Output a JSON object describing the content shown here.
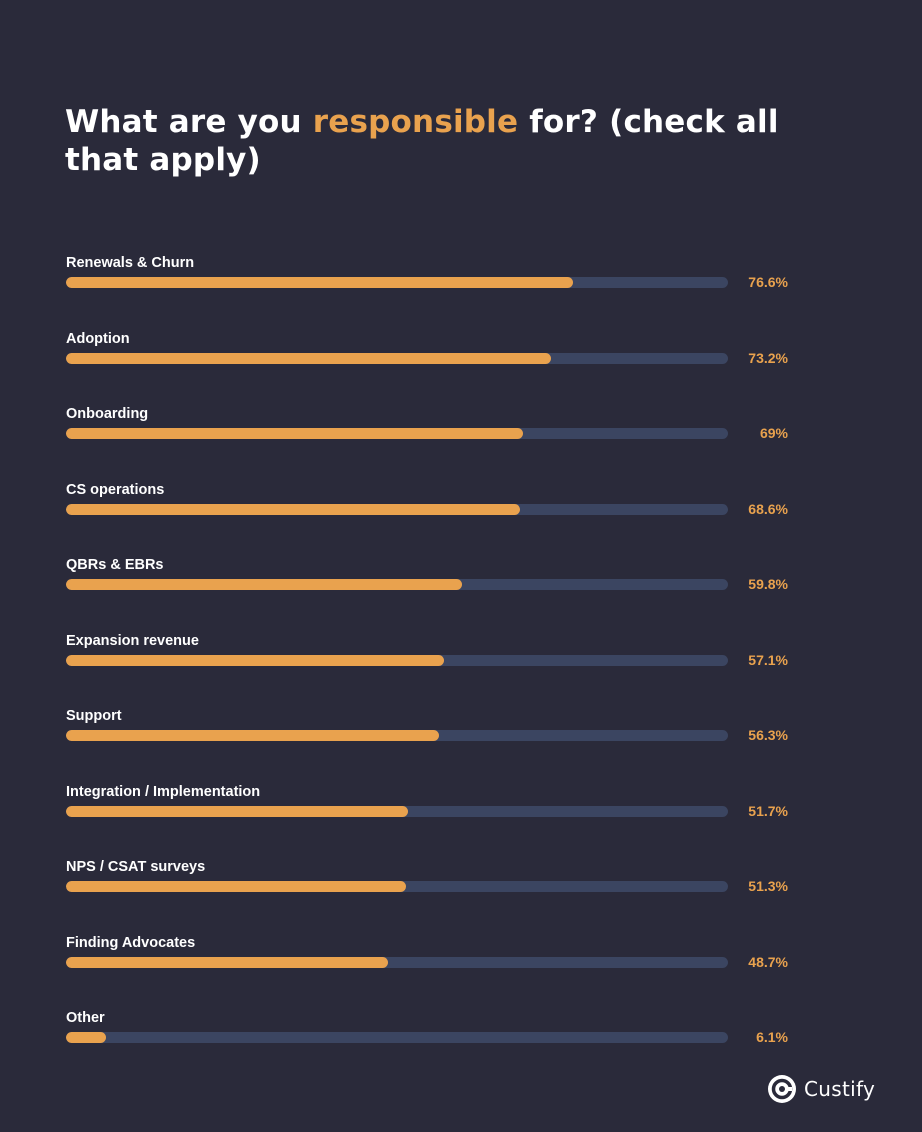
{
  "title": {
    "before": "What are you ",
    "highlight": "responsible",
    "after": " for? (check all that apply)"
  },
  "colors": {
    "background": "#2a2a3a",
    "bar_fill": "#e9a24e",
    "bar_track": "#3b4561",
    "label_text": "#ffffff",
    "value_text": "#e9a24e"
  },
  "chart_data": {
    "type": "bar",
    "orientation": "horizontal",
    "title": "What are you responsible for? (check all that apply)",
    "categories": [
      "Renewals & Churn",
      "Adoption",
      "Onboarding",
      "CS operations",
      "QBRs & EBRs",
      "Expansion revenue",
      "Support",
      "Integration / Implementation",
      "NPS / CSAT surveys",
      "Finding Advocates",
      "Other"
    ],
    "values": [
      76.6,
      73.2,
      69,
      68.6,
      59.8,
      57.1,
      56.3,
      51.7,
      51.3,
      48.7,
      6.1
    ],
    "value_labels": [
      "76.6%",
      "73.2%",
      "69%",
      "68.6%",
      "59.8%",
      "57.1%",
      "56.3%",
      "51.7%",
      "51.3%",
      "48.7%",
      "6.1%"
    ],
    "xlim": [
      0,
      100
    ],
    "grid": false,
    "legend": "none"
  },
  "brand": {
    "name": "Custify",
    "icon": "custify-logo-icon"
  }
}
